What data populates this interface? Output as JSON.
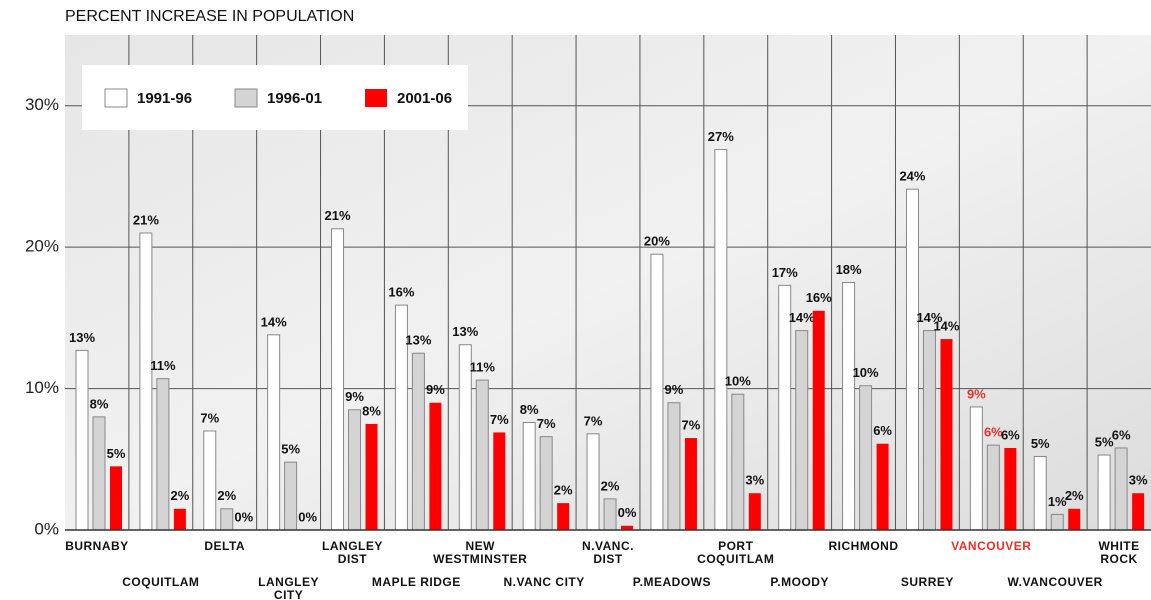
{
  "chart_data": {
    "type": "bar",
    "title": "PERCENT INCREASE IN POPULATION",
    "categories": [
      "BURNABY",
      "COQUITLAM",
      "DELTA",
      "LANGLEY\nCITY",
      "LANGLEY\nDIST",
      "MAPLE RIDGE",
      "NEW\nWESTMINSTER",
      "N.VANC CITY",
      "N.VANC.\nDIST",
      "P.MEADOWS",
      "PORT\nCOQUITLAM",
      "P.MOODY",
      "RICHMOND",
      "SURREY",
      "VANCOUVER",
      "W.VANCOUVER",
      "WHITE\nROCK"
    ],
    "series": [
      {
        "name": "1991-96",
        "color": "#ffffff",
        "values": [
          12.7,
          21.0,
          7.0,
          13.8,
          21.3,
          15.9,
          13.1,
          7.6,
          6.8,
          19.5,
          26.9,
          17.3,
          17.5,
          24.1,
          8.7,
          5.2,
          5.3
        ],
        "value_labels": [
          "13%",
          "21%",
          "7%",
          "14%",
          "21%",
          "16%",
          "13%",
          "8%",
          "7%",
          "20%",
          "27%",
          "17%",
          "18%",
          "24%",
          "9%",
          "5%",
          "5%"
        ]
      },
      {
        "name": "1996-01",
        "color": "#d4d4d4",
        "values": [
          8.0,
          10.7,
          1.5,
          4.8,
          8.5,
          12.5,
          10.6,
          6.6,
          2.2,
          9.0,
          9.6,
          14.1,
          10.2,
          14.1,
          6.0,
          1.1,
          5.8
        ],
        "value_labels": [
          "8%",
          "11%",
          "2%",
          "5%",
          "9%",
          "13%",
          "11%",
          "7%",
          "2%",
          "9%",
          "10%",
          "14%",
          "10%",
          "14%",
          "6%",
          "1%",
          "6%"
        ]
      },
      {
        "name": "2001-06",
        "color": "#ff0000",
        "values": [
          4.5,
          1.5,
          0,
          0,
          7.5,
          9.0,
          6.9,
          1.9,
          0.3,
          6.5,
          2.6,
          15.5,
          6.1,
          13.5,
          5.8,
          1.5,
          2.6
        ],
        "value_labels": [
          "5%",
          "2%",
          "0%",
          "0%",
          "8%",
          "9%",
          "7%",
          "2%",
          "0%",
          "7%",
          "3%",
          "16%",
          "6%",
          "14%",
          "6%",
          "2%",
          "3%"
        ]
      }
    ],
    "ylim": [
      0,
      35
    ],
    "yticks": [
      {
        "value": 0,
        "label": "0%"
      },
      {
        "value": 10,
        "label": "10%"
      },
      {
        "value": 20,
        "label": "20%"
      },
      {
        "value": 30,
        "label": "30%"
      }
    ],
    "grid": true,
    "legend": "top-left",
    "highlight": {
      "category_index": 14,
      "color": "#e8302a"
    }
  }
}
